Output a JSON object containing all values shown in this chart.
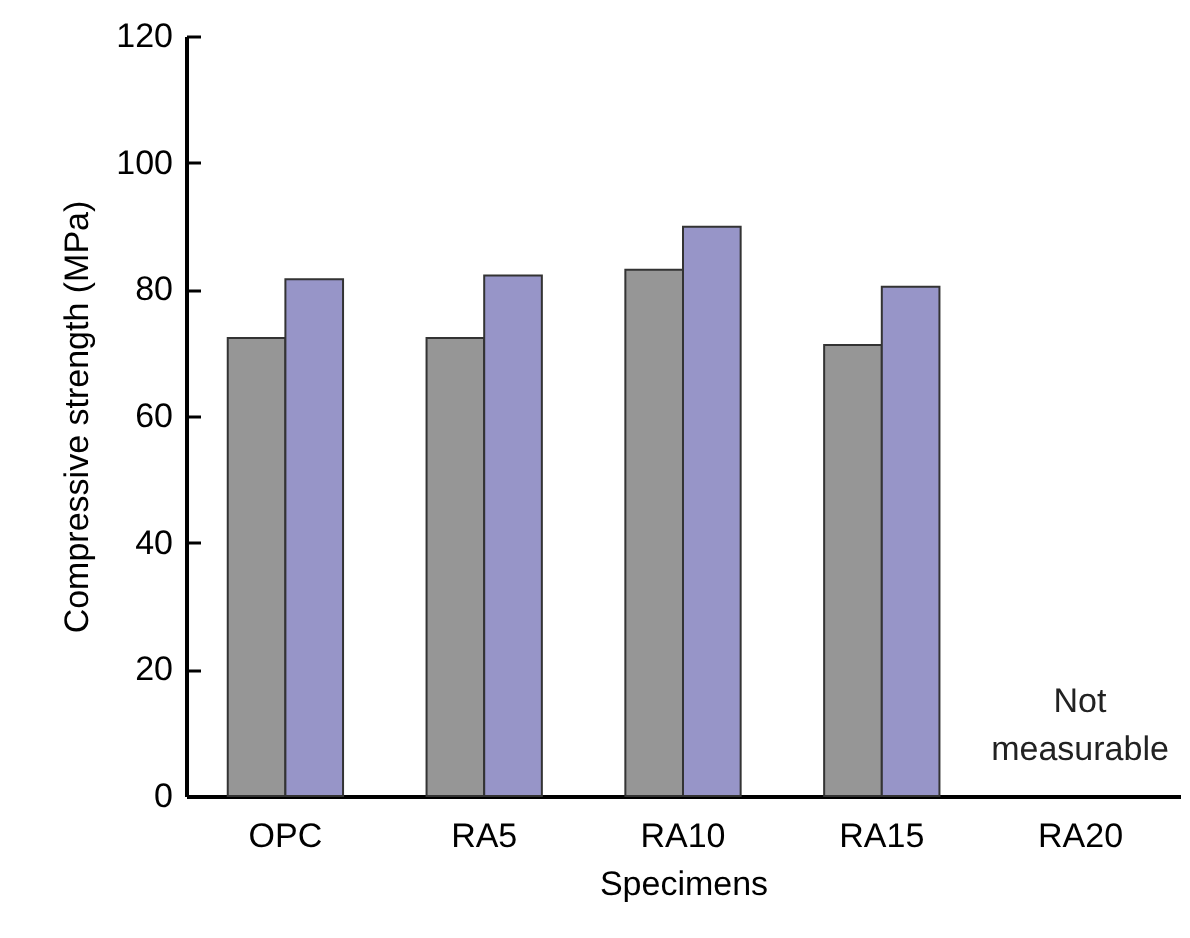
{
  "chart_data": {
    "type": "bar",
    "xlabel": "Specimens",
    "ylabel": "Compressive strength (MPa)",
    "categories": [
      "OPC",
      "RA5",
      "RA10",
      "RA15",
      "RA20"
    ],
    "series": [
      {
        "color": "#969696",
        "values": [
          72.3,
          72.3,
          83.1,
          71.2,
          null
        ]
      },
      {
        "color": "#9795c8",
        "values": [
          81.6,
          82.2,
          89.9,
          80.4,
          null
        ]
      }
    ],
    "ylim": [
      0,
      120
    ],
    "yticks": [
      0,
      20,
      40,
      60,
      80,
      100,
      120
    ],
    "grid": false,
    "annotations": [
      "Not measurable"
    ]
  }
}
